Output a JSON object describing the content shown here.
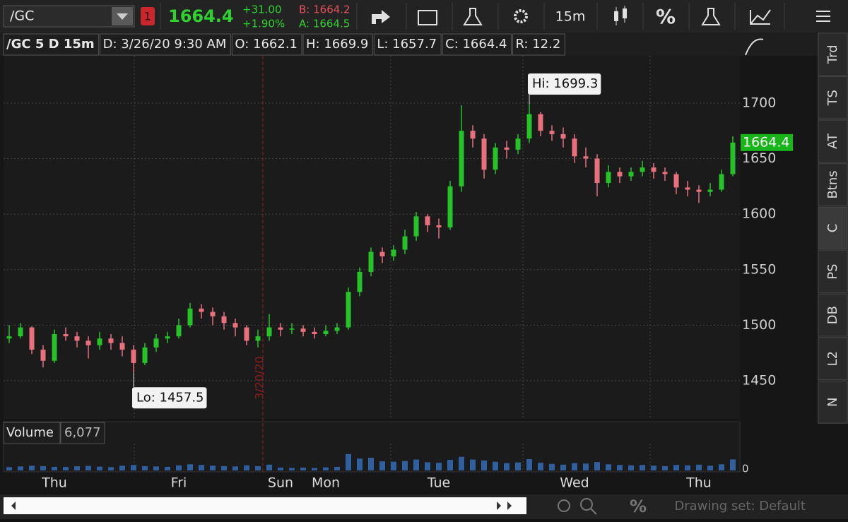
{
  "toolbar": {
    "symbol": "/GC",
    "alert_badge": "1",
    "last": "1664.4",
    "change": "+31.00",
    "change_pct": "+1.90%",
    "bid": "B: 1664.2",
    "ask": "A: 1664.5",
    "interval": "15m",
    "percent": "%"
  },
  "sidebar_tabs": [
    "Trd",
    "TS",
    "AT",
    "Btns",
    "C",
    "PS",
    "DB",
    "L2",
    "N"
  ],
  "drawing_set": "Drawing set: Default",
  "chart_data": {
    "type": "candlestick",
    "header": [
      "/GC 5 D 15m",
      "D: 3/26/20 9:30 AM",
      "O: 1662.1",
      "H: 1669.9",
      "L: 1657.7",
      "C: 1664.4",
      "R: 12.2"
    ],
    "annotations": {
      "high": "Hi: 1699.3",
      "low": "Lo: 1457.5",
      "date_marker": "3/20/20"
    },
    "up_color": "#27c22a",
    "down_color": "#e8707c",
    "categories": [
      null,
      null,
      null,
      null,
      "Thu",
      null,
      null,
      null,
      null,
      null,
      null,
      null,
      null,
      null,
      null,
      "Fri",
      null,
      null,
      null,
      null,
      null,
      null,
      null,
      null,
      "Sun",
      null,
      null,
      null,
      "Mon",
      null,
      null,
      null,
      null,
      null,
      null,
      null,
      null,
      null,
      "Tue",
      null,
      null,
      null,
      null,
      null,
      null,
      null,
      null,
      null,
      null,
      null,
      "Wed",
      null,
      null,
      null,
      null,
      null,
      null,
      null,
      null,
      null,
      null,
      "Thu",
      null,
      null,
      null
    ],
    "candles": [
      [
        1488,
        1500,
        1484,
        1490
      ],
      [
        1490,
        1502,
        1488,
        1498
      ],
      [
        1498,
        1499,
        1474,
        1478
      ],
      [
        1478,
        1482,
        1462,
        1468
      ],
      [
        1468,
        1496,
        1466,
        1492
      ],
      [
        1492,
        1498,
        1486,
        1490
      ],
      [
        1490,
        1494,
        1480,
        1486
      ],
      [
        1486,
        1490,
        1470,
        1482
      ],
      [
        1482,
        1494,
        1478,
        1488
      ],
      [
        1488,
        1492,
        1478,
        1484
      ],
      [
        1484,
        1490,
        1472,
        1478
      ],
      [
        1478,
        1482,
        1457.5,
        1466
      ],
      [
        1466,
        1484,
        1464,
        1480
      ],
      [
        1480,
        1492,
        1476,
        1488
      ],
      [
        1488,
        1494,
        1484,
        1490
      ],
      [
        1490,
        1506,
        1488,
        1500
      ],
      [
        1500,
        1520,
        1498,
        1515
      ],
      [
        1515,
        1519,
        1506,
        1512
      ],
      [
        1512,
        1516,
        1500,
        1508
      ],
      [
        1508,
        1512,
        1496,
        1502
      ],
      [
        1502,
        1506,
        1490,
        1498
      ],
      [
        1498,
        1500,
        1482,
        1486
      ],
      [
        1486,
        1496,
        1480,
        1490
      ],
      [
        1490,
        1510,
        1486,
        1498
      ],
      [
        1498,
        1502,
        1490,
        1496
      ],
      [
        1496,
        1502,
        1492,
        1497
      ],
      [
        1497,
        1500,
        1490,
        1494
      ],
      [
        1494,
        1498,
        1488,
        1492
      ],
      [
        1492,
        1500,
        1490,
        1495
      ],
      [
        1495,
        1502,
        1492,
        1498
      ],
      [
        1498,
        1534,
        1496,
        1530
      ],
      [
        1530,
        1552,
        1526,
        1548
      ],
      [
        1548,
        1570,
        1544,
        1566
      ],
      [
        1566,
        1570,
        1556,
        1562
      ],
      [
        1562,
        1572,
        1558,
        1568
      ],
      [
        1568,
        1586,
        1564,
        1580
      ],
      [
        1580,
        1602,
        1576,
        1598
      ],
      [
        1598,
        1600,
        1584,
        1590
      ],
      [
        1590,
        1596,
        1578,
        1588
      ],
      [
        1588,
        1630,
        1586,
        1625
      ],
      [
        1625,
        1698,
        1620,
        1675
      ],
      [
        1675,
        1680,
        1660,
        1668
      ],
      [
        1668,
        1672,
        1632,
        1640
      ],
      [
        1640,
        1664,
        1636,
        1660
      ],
      [
        1660,
        1666,
        1650,
        1658
      ],
      [
        1658,
        1672,
        1654,
        1668
      ],
      [
        1668,
        1699.3,
        1664,
        1690
      ],
      [
        1690,
        1692,
        1670,
        1675
      ],
      [
        1675,
        1680,
        1666,
        1672
      ],
      [
        1672,
        1678,
        1660,
        1668
      ],
      [
        1668,
        1672,
        1646,
        1652
      ],
      [
        1652,
        1660,
        1642,
        1650
      ],
      [
        1650,
        1654,
        1616,
        1628
      ],
      [
        1628,
        1644,
        1624,
        1638
      ],
      [
        1638,
        1642,
        1628,
        1634
      ],
      [
        1634,
        1642,
        1630,
        1638
      ],
      [
        1638,
        1648,
        1634,
        1642
      ],
      [
        1642,
        1646,
        1632,
        1638
      ],
      [
        1638,
        1642,
        1630,
        1636
      ],
      [
        1636,
        1638,
        1618,
        1624
      ],
      [
        1624,
        1630,
        1616,
        1622
      ],
      [
        1622,
        1626,
        1610,
        1620
      ],
      [
        1620,
        1628,
        1616,
        1622
      ],
      [
        1622,
        1640,
        1620,
        1636
      ],
      [
        1636,
        1670,
        1634,
        1664.4
      ]
    ],
    "ylim": [
      1415.7,
      1742.5
    ],
    "yticks": [
      1450,
      1500,
      1550,
      1600,
      1650,
      1700
    ],
    "volume": {
      "label": "Volume",
      "value_label": "6,077",
      "color": "#2f5f9e",
      "values": [
        1800,
        2200,
        2600,
        2400,
        2000,
        1900,
        2300,
        2500,
        2100,
        1800,
        2600,
        3000,
        2400,
        2200,
        2000,
        2800,
        3400,
        3000,
        2600,
        2400,
        2200,
        2800,
        2400,
        3200,
        1600,
        1400,
        1500,
        1300,
        1700,
        2000,
        9000,
        6500,
        7000,
        5000,
        4800,
        5200,
        6000,
        4500,
        4200,
        5800,
        7500,
        6000,
        5500,
        4800,
        4000,
        4400,
        6200,
        4200,
        3600,
        3200,
        4000,
        3800,
        4600,
        3400,
        3000,
        2800,
        3000,
        2600,
        2400,
        3000,
        2800,
        3200,
        2600,
        3400,
        6077
      ],
      "ylim": [
        0,
        14000
      ],
      "yticks": [
        0
      ]
    }
  }
}
